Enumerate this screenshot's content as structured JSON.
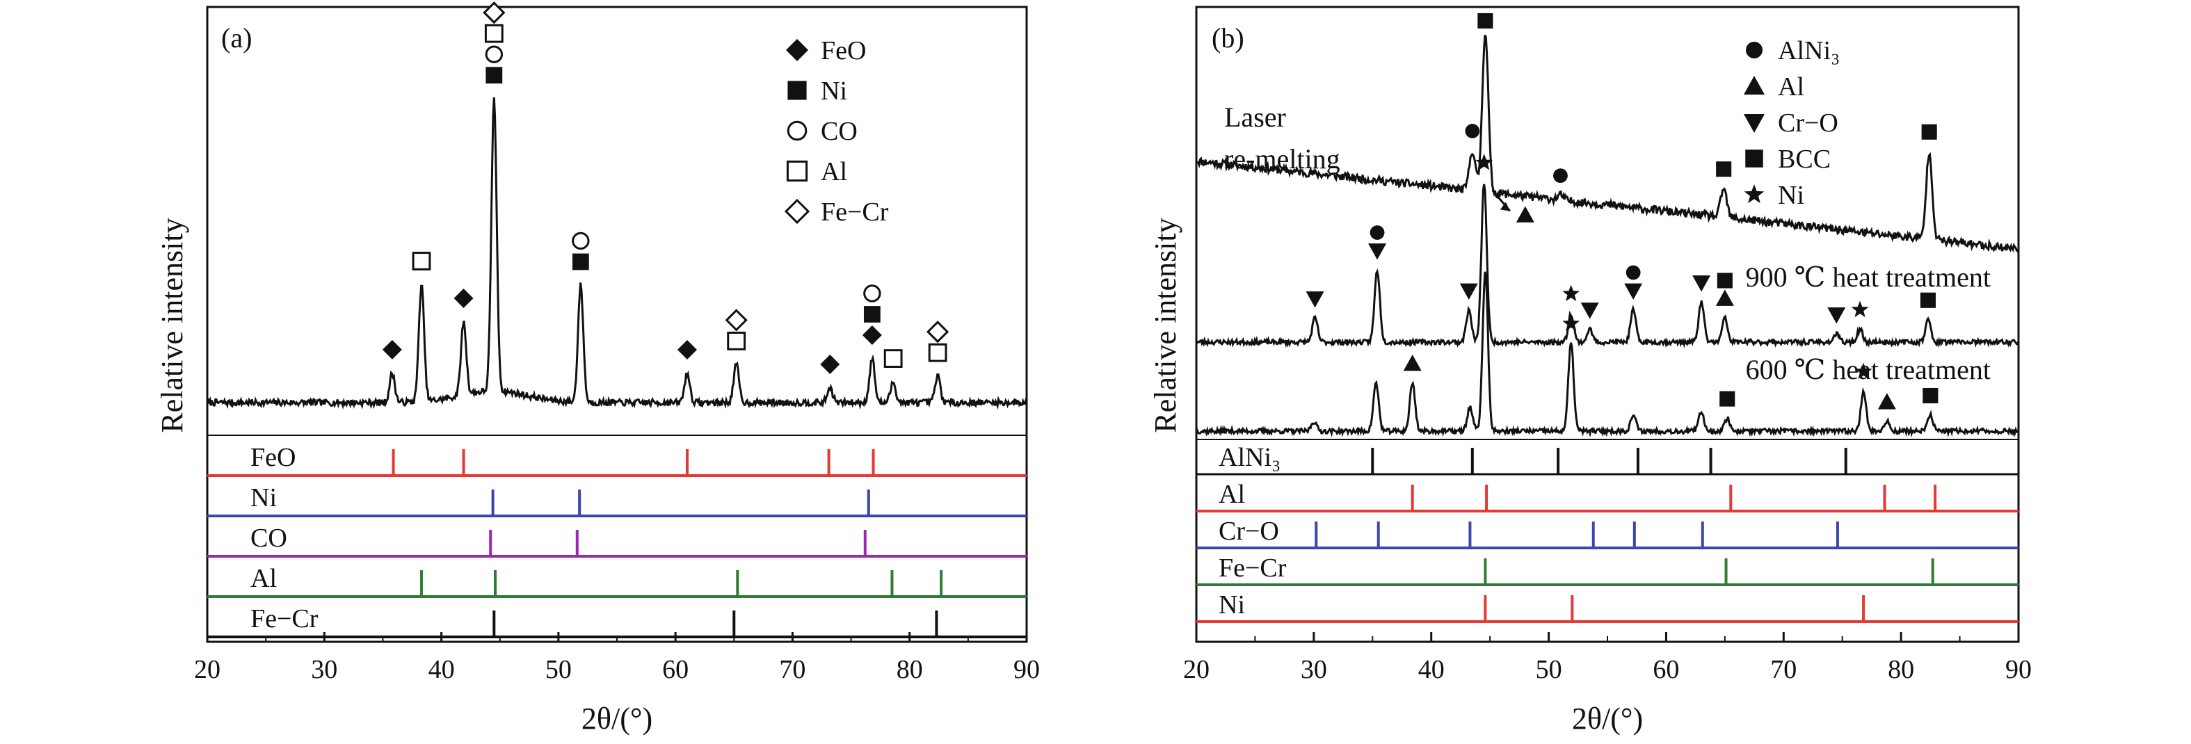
{
  "chart_data": [
    {
      "type": "line",
      "panel_label": "(a)",
      "xlabel": "2θ/(°)",
      "ylabel": "Relative intensity",
      "xlim": [
        20,
        90
      ],
      "xticks": [
        "20",
        "30",
        "40",
        "50",
        "60",
        "70",
        "80",
        "90"
      ],
      "legend": [
        {
          "marker": "filled-diamond",
          "label": "FeO"
        },
        {
          "marker": "filled-square",
          "label": "Ni"
        },
        {
          "marker": "open-circle",
          "label": "CO"
        },
        {
          "marker": "open-square",
          "label": "Al"
        },
        {
          "marker": "open-diamond",
          "label": "Fe−Cr"
        }
      ],
      "pattern": {
        "baseline": 0.05,
        "peaks": [
          {
            "x": 35.8,
            "h": 0.1
          },
          {
            "x": 38.3,
            "h": 0.4
          },
          {
            "x": 41.9,
            "h": 0.25
          },
          {
            "x": 44.5,
            "h": 1.0
          },
          {
            "x": 51.9,
            "h": 0.4
          },
          {
            "x": 61.0,
            "h": 0.1
          },
          {
            "x": 65.2,
            "h": 0.13
          },
          {
            "x": 73.2,
            "h": 0.05
          },
          {
            "x": 76.8,
            "h": 0.15
          },
          {
            "x": 78.6,
            "h": 0.07
          },
          {
            "x": 82.4,
            "h": 0.09
          }
        ]
      },
      "peak_markers": [
        {
          "x": 35.8,
          "markers": [
            "filled-diamond"
          ]
        },
        {
          "x": 38.3,
          "markers": [
            "open-square"
          ]
        },
        {
          "x": 41.9,
          "markers": [
            "filled-diamond"
          ]
        },
        {
          "x": 44.5,
          "markers": [
            "filled-square",
            "open-circle",
            "open-square",
            "open-diamond"
          ]
        },
        {
          "x": 51.9,
          "markers": [
            "filled-square",
            "open-circle"
          ]
        },
        {
          "x": 61.0,
          "markers": [
            "filled-diamond"
          ]
        },
        {
          "x": 65.2,
          "markers": [
            "open-square",
            "open-diamond"
          ]
        },
        {
          "x": 73.2,
          "markers": [
            "filled-diamond"
          ]
        },
        {
          "x": 76.8,
          "markers": [
            "filled-diamond",
            "filled-square",
            "open-circle"
          ]
        },
        {
          "x": 78.6,
          "markers": [
            "open-square"
          ]
        },
        {
          "x": 82.4,
          "markers": [
            "open-square",
            "open-diamond"
          ]
        }
      ],
      "reference_patterns": [
        {
          "name": "FeO",
          "color": "#e53935",
          "peaks": [
            35.9,
            41.9,
            61.0,
            73.1,
            76.9
          ]
        },
        {
          "name": "Ni",
          "color": "#3949ab",
          "peaks": [
            44.4,
            51.8,
            76.5
          ]
        },
        {
          "name": "CO",
          "color": "#9c27b0",
          "peaks": [
            44.2,
            51.6,
            76.2
          ]
        },
        {
          "name": "Al",
          "color": "#2e7d32",
          "peaks": [
            38.3,
            44.6,
            65.3,
            78.5,
            82.7
          ]
        },
        {
          "name": "Fe−Cr",
          "color": "#111111",
          "peaks": [
            44.5,
            65.0,
            82.3
          ]
        }
      ]
    },
    {
      "type": "line",
      "panel_label": "(b)",
      "xlabel": "2θ/(°)",
      "ylabel": "Relative intensity",
      "xlim": [
        20,
        90
      ],
      "xticks": [
        "20",
        "30",
        "40",
        "50",
        "60",
        "70",
        "80",
        "90"
      ],
      "legend": [
        {
          "marker": "filled-circle",
          "label": "AlNi₃"
        },
        {
          "marker": "filled-triangle-up",
          "label": "Al"
        },
        {
          "marker": "filled-triangle-down",
          "label": "Cr−O"
        },
        {
          "marker": "filled-square",
          "label": "BCC"
        },
        {
          "marker": "filled-star",
          "label": "Ni"
        }
      ],
      "series": [
        {
          "name": "Laser re-melting",
          "label_lines": [
            "Laser",
            "re-melting"
          ],
          "baseline_start": 0.55,
          "baseline_end": 0.0,
          "peaks": [
            {
              "x": 43.5,
              "h": 0.25
            },
            {
              "x": 44.6,
              "h": 1.0
            },
            {
              "x": 51.0,
              "h": 0.03
            },
            {
              "x": 64.9,
              "h": 0.18
            },
            {
              "x": 82.4,
              "h": 0.55
            }
          ],
          "peak_markers": [
            {
              "x": 43.5,
              "markers": [
                "filled-circle"
              ]
            },
            {
              "x": 44.6,
              "markers": [
                "filled-square"
              ]
            },
            {
              "x": 51.0,
              "markers": [
                "filled-circle"
              ]
            },
            {
              "x": 64.9,
              "markers": [
                "filled-square"
              ]
            },
            {
              "x": 82.4,
              "markers": [
                "filled-square"
              ]
            }
          ]
        },
        {
          "name": "900 ℃ heat treatment",
          "label_lines": [
            "900 ℃ heat treatment"
          ],
          "baseline_start": 0.0,
          "baseline_end": 0.0,
          "peaks": [
            {
              "x": 30.1,
              "h": 0.15
            },
            {
              "x": 35.4,
              "h": 0.45
            },
            {
              "x": 43.2,
              "h": 0.2
            },
            {
              "x": 44.5,
              "h": 1.0
            },
            {
              "x": 51.9,
              "h": 0.18
            },
            {
              "x": 53.5,
              "h": 0.08
            },
            {
              "x": 57.2,
              "h": 0.2
            },
            {
              "x": 63.0,
              "h": 0.25
            },
            {
              "x": 65.0,
              "h": 0.15
            },
            {
              "x": 74.5,
              "h": 0.05
            },
            {
              "x": 76.5,
              "h": 0.08
            },
            {
              "x": 82.3,
              "h": 0.14
            }
          ],
          "peak_markers": [
            {
              "x": 30.1,
              "markers": [
                "filled-triangle-down"
              ]
            },
            {
              "x": 35.4,
              "markers": [
                "filled-triangle-down",
                "filled-circle"
              ]
            },
            {
              "x": 43.2,
              "markers": [
                "filled-triangle-down"
              ]
            },
            {
              "x": 44.5,
              "markers": [
                "filled-star"
              ]
            },
            {
              "x": 51.9,
              "markers": [
                "filled-star"
              ]
            },
            {
              "x": 53.5,
              "markers": [
                "filled-triangle-down"
              ]
            },
            {
              "x": 57.2,
              "markers": [
                "filled-triangle-down",
                "filled-circle"
              ]
            },
            {
              "x": 63.0,
              "markers": [
                "filled-triangle-down"
              ]
            },
            {
              "x": 65.0,
              "markers": [
                "filled-triangle-up",
                "filled-square"
              ]
            },
            {
              "x": 74.5,
              "markers": [
                "filled-triangle-down"
              ]
            },
            {
              "x": 76.5,
              "markers": [
                "filled-star"
              ]
            },
            {
              "x": 82.3,
              "markers": [
                "filled-square"
              ]
            }
          ],
          "arrow_annotation": {
            "from_x": 45.2,
            "to_x": 46.7,
            "marker": "filled-triangle-up"
          }
        },
        {
          "name": "600 ℃ heat treatment",
          "label_lines": [
            "600 ℃ heat treatment"
          ],
          "baseline_start": 0.0,
          "baseline_end": 0.0,
          "peaks": [
            {
              "x": 30.0,
              "h": 0.06
            },
            {
              "x": 35.3,
              "h": 0.3
            },
            {
              "x": 38.4,
              "h": 0.3
            },
            {
              "x": 43.3,
              "h": 0.15
            },
            {
              "x": 44.6,
              "h": 1.0
            },
            {
              "x": 51.9,
              "h": 0.55
            },
            {
              "x": 57.2,
              "h": 0.1
            },
            {
              "x": 63.0,
              "h": 0.12
            },
            {
              "x": 65.2,
              "h": 0.08
            },
            {
              "x": 76.8,
              "h": 0.25
            },
            {
              "x": 78.8,
              "h": 0.06
            },
            {
              "x": 82.5,
              "h": 0.1
            }
          ],
          "peak_markers": [
            {
              "x": 38.4,
              "markers": [
                "filled-triangle-up"
              ]
            },
            {
              "x": 51.9,
              "markers": [
                "filled-star"
              ]
            },
            {
              "x": 65.2,
              "markers": [
                "filled-square"
              ]
            },
            {
              "x": 76.8,
              "markers": [
                "filled-star"
              ]
            },
            {
              "x": 78.8,
              "markers": [
                "filled-triangle-up"
              ]
            },
            {
              "x": 82.5,
              "markers": [
                "filled-square"
              ]
            }
          ]
        }
      ],
      "reference_patterns": [
        {
          "name": "AlNi₃",
          "color": "#111111",
          "peaks": [
            35.0,
            43.5,
            50.8,
            57.6,
            63.8,
            75.3
          ]
        },
        {
          "name": "Al",
          "color": "#e53935",
          "peaks": [
            38.4,
            44.7,
            65.5,
            78.6,
            82.9
          ]
        },
        {
          "name": "Cr−O",
          "color": "#3949ab",
          "peaks": [
            30.2,
            35.5,
            43.3,
            53.8,
            57.3,
            63.1,
            74.6
          ]
        },
        {
          "name": "Fe−Cr",
          "color": "#2e7d32",
          "peaks": [
            44.6,
            65.1,
            82.7
          ]
        },
        {
          "name": "Ni",
          "color": "#e53935",
          "peaks": [
            44.6,
            52.0,
            76.8
          ]
        }
      ]
    }
  ]
}
